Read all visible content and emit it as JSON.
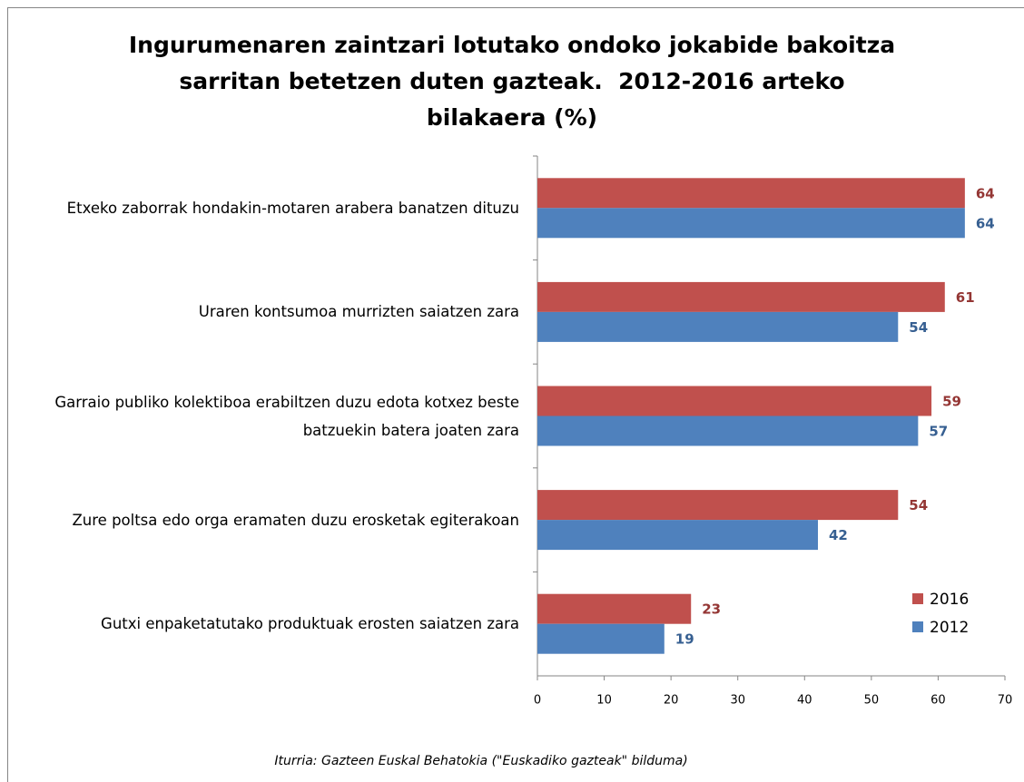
{
  "chart_data": {
    "type": "barh",
    "title": "Ingurumenaren zaintzari lotutako ondoko jokabide bakoitza sarritan betetzen duten gazteak.  2012-2016 arteko bilakaera (%)",
    "categories": [
      "Etxeko zaborrak hondakin-motaren arabera banatzen dituzu",
      "Uraren kontsumoa murrizten saiatzen zara",
      "Garraio publiko kolektiboa erabiltzen duzu edota kotxez beste batzuekin batera joaten zara",
      "Zure poltsa edo orga eramaten duzu erosketak egiterakoan",
      "Gutxi enpaketatutako produktuak erosten saiatzen zara"
    ],
    "series": [
      {
        "name": "2016",
        "color": "#c0504d",
        "label_color": "#943634",
        "values": [
          64,
          61,
          59,
          54,
          23
        ]
      },
      {
        "name": "2012",
        "color": "#4f81bd",
        "label_color": "#365f91",
        "values": [
          64,
          54,
          57,
          42,
          19
        ]
      }
    ],
    "xlim": [
      0,
      70
    ],
    "xticks": [
      0,
      10,
      20,
      30,
      40,
      50,
      60,
      70
    ],
    "legend": "lower right",
    "source": "Iturria: Gazteen Euskal Behatokia (\"Euskadiko gazteak\" bilduma)"
  }
}
